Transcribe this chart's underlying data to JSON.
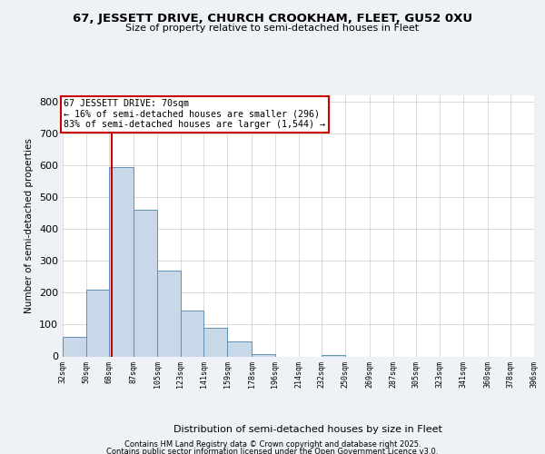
{
  "title": "67, JESSETT DRIVE, CHURCH CROOKHAM, FLEET, GU52 0XU",
  "subtitle": "Size of property relative to semi-detached houses in Fleet",
  "xlabel": "Distribution of semi-detached houses by size in Fleet",
  "ylabel": "Number of semi-detached properties",
  "bin_edges": [
    32,
    50,
    68,
    87,
    105,
    123,
    141,
    159,
    178,
    196,
    214,
    232,
    250,
    269,
    287,
    305,
    323,
    341,
    360,
    378,
    396
  ],
  "bar_heights": [
    60,
    210,
    595,
    462,
    270,
    145,
    90,
    47,
    8,
    0,
    0,
    5,
    0,
    0,
    0,
    0,
    0,
    0,
    0,
    0
  ],
  "bar_color": "#c8d8e8",
  "bar_edge_color": "#6090b0",
  "property_size": 70,
  "property_label": "67 JESSETT DRIVE: 70sqm",
  "pct_smaller": 16,
  "n_smaller": 296,
  "pct_larger": 83,
  "n_larger": 1544,
  "vline_color": "#cc0000",
  "annotation_box_color": "#cc0000",
  "ylim": [
    0,
    820
  ],
  "background_color": "#eef2f7",
  "plot_background": "#ffffff",
  "footer_line1": "Contains HM Land Registry data © Crown copyright and database right 2025.",
  "footer_line2": "Contains public sector information licensed under the Open Government Licence v3.0.",
  "tick_labels": [
    "32sqm",
    "50sqm",
    "68sqm",
    "87sqm",
    "105sqm",
    "123sqm",
    "141sqm",
    "159sqm",
    "178sqm",
    "196sqm",
    "214sqm",
    "232sqm",
    "250sqm",
    "269sqm",
    "287sqm",
    "305sqm",
    "323sqm",
    "341sqm",
    "360sqm",
    "378sqm",
    "396sqm"
  ],
  "yticks": [
    0,
    100,
    200,
    300,
    400,
    500,
    600,
    700,
    800
  ]
}
